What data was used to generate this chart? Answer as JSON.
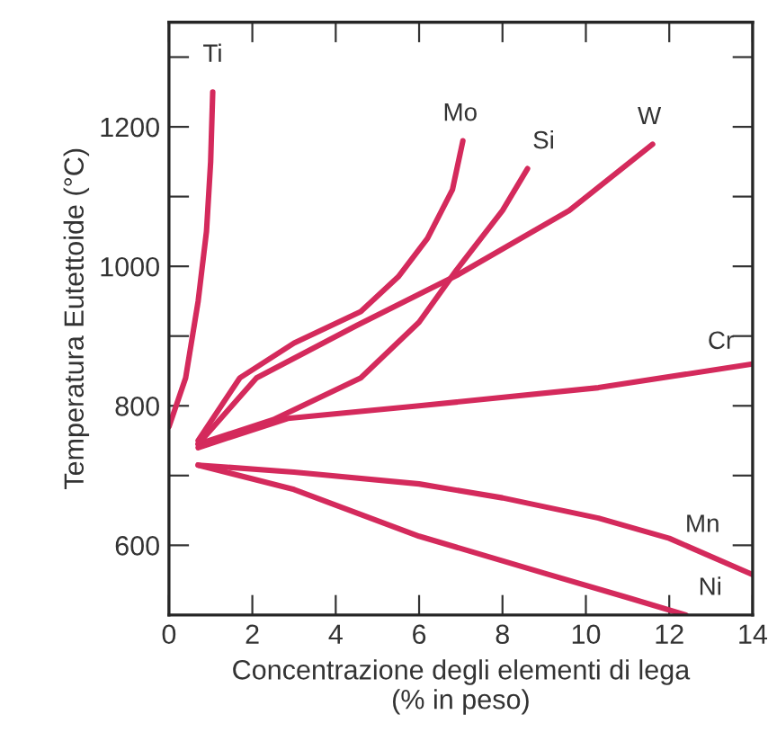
{
  "chart_data": {
    "type": "line",
    "xlabel": "Concentrazione degli elementi di lega\n(% in peso)",
    "ylabel": "Temperatura Eutettoide (°C)",
    "xlim": [
      0,
      14
    ],
    "ylim": [
      500,
      1350
    ],
    "xticks": [
      0,
      2,
      4,
      6,
      8,
      10,
      12,
      14
    ],
    "yticks": [
      600,
      {
        "value": 700,
        "label": null
      },
      800,
      {
        "value": 900,
        "label": null
      },
      1000,
      {
        "value": 1100,
        "label": null
      },
      1200,
      {
        "value": 1300,
        "label": null
      }
    ],
    "grid": false,
    "legend": false,
    "marker": "none",
    "line_style": "solid",
    "series": [
      {
        "color": "#d42a5c",
        "x": [
          0,
          0.4,
          0.7,
          0.9,
          1.0,
          1.05
        ],
        "values": [
          770,
          840,
          950,
          1050,
          1150,
          1250
        ]
      },
      {
        "color": "#d42a5c",
        "x": [
          0.7,
          1.7,
          3,
          4.6,
          5.5,
          6.2,
          6.8,
          7.05
        ],
        "values": [
          750,
          840,
          890,
          935,
          985,
          1040,
          1110,
          1180
        ]
      },
      {
        "color": "#d42a5c",
        "x": [
          0.7,
          2.5,
          4.6,
          6,
          6.9,
          8,
          8.6
        ],
        "values": [
          745,
          780,
          840,
          920,
          995,
          1080,
          1140
        ]
      },
      {
        "color": "#d42a5c",
        "x": [
          0.7,
          2.1,
          4.5,
          6.9,
          9.6,
          11.6
        ],
        "values": [
          745,
          840,
          915,
          987,
          1080,
          1175
        ]
      },
      {
        "color": "#d42a5c",
        "x": [
          0.7,
          2.85,
          6,
          10.3,
          14
        ],
        "values": [
          740,
          782,
          800,
          826,
          860
        ]
      },
      {
        "color": "#d42a5c",
        "x": [
          0.7,
          3,
          6,
          8,
          10.3,
          12,
          14
        ],
        "values": [
          715,
          705,
          688,
          668,
          639,
          610,
          558
        ]
      },
      {
        "color": "#d42a5c",
        "x": [
          0.7,
          3,
          6,
          9,
          11,
          12.4
        ],
        "values": [
          715,
          680,
          613,
          560,
          525,
          500
        ]
      }
    ],
    "annotations": [
      {
        "text": "Ti",
        "x": 1.05,
        "y": 1250
      },
      {
        "text": "Mo",
        "x": 7.05,
        "y": 1180
      },
      {
        "text": "Si",
        "x": 8.6,
        "y": 1140
      },
      {
        "text": "W",
        "x": 11.6,
        "y": 1175
      },
      {
        "text": "Cr",
        "x": 14,
        "y": 860
      },
      {
        "text": "Mn",
        "x": 14,
        "y": 558
      },
      {
        "text": "Ni",
        "x": 12.4,
        "y": 500
      }
    ]
  }
}
